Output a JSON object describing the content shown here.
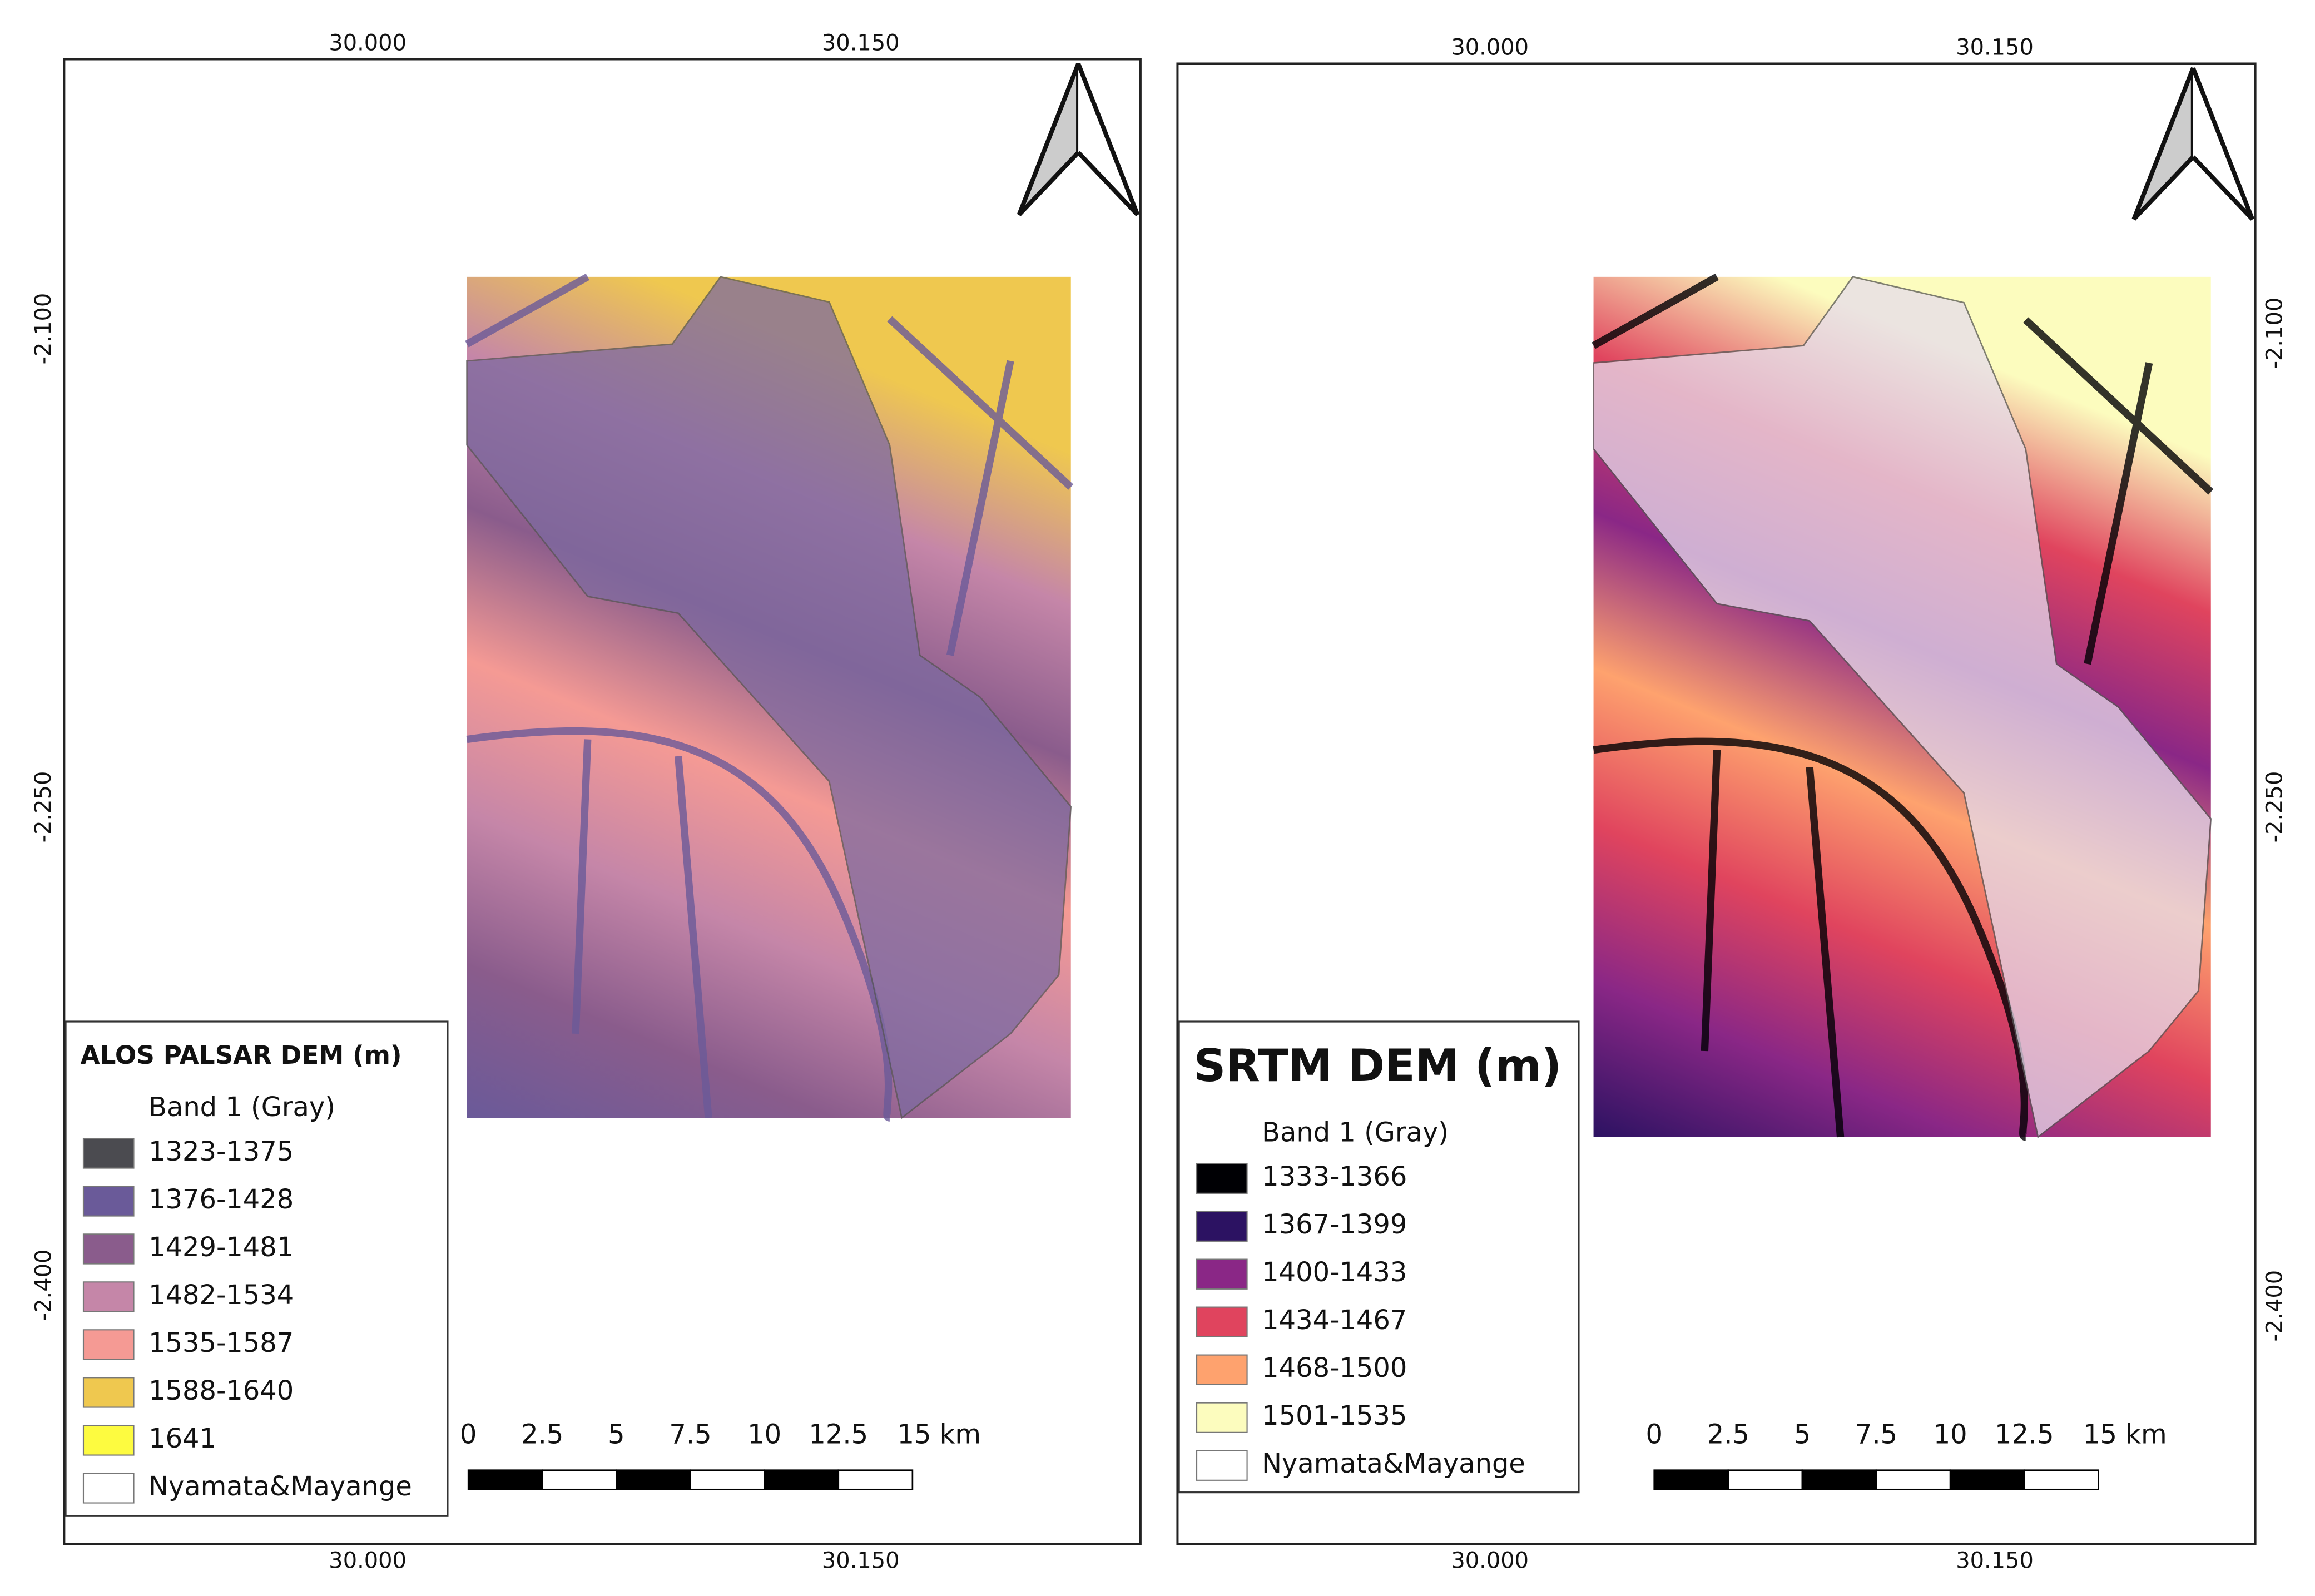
{
  "maps": [
    {
      "title": "ALOS PALSAR DEM (m)",
      "band": "Band 1 (Gray)",
      "classes": [
        {
          "label": "1323-1375",
          "color": "#4b4b50"
        },
        {
          "label": "1376-1428",
          "color": "#6a5a99"
        },
        {
          "label": "1429-1481",
          "color": "#8a5c8c"
        },
        {
          "label": "1482-1534",
          "color": "#c586a8"
        },
        {
          "label": "1535-1587",
          "color": "#f59a94"
        },
        {
          "label": "1588-1640",
          "color": "#efc84f"
        },
        {
          "label": "1641",
          "color": "#fdfb40"
        }
      ],
      "boundary": "Nyamata&Mayange",
      "x_labels": [
        "30.000",
        "30.150"
      ],
      "y_labels": [
        "-2.100",
        "-2.250",
        "-2.400"
      ],
      "scale_labels": [
        "0",
        "2.5",
        "5",
        "7.5",
        "10",
        "12.5",
        "15 km"
      ]
    },
    {
      "title": "SRTM DEM (m)",
      "band": "Band 1 (Gray)",
      "classes": [
        {
          "label": "1333-1366",
          "color": "#000004"
        },
        {
          "label": "1367-1399",
          "color": "#2c1262"
        },
        {
          "label": "1400-1433",
          "color": "#8a2786"
        },
        {
          "label": "1434-1467",
          "color": "#e0445e"
        },
        {
          "label": "1468-1500",
          "color": "#fea26e"
        },
        {
          "label": "1501-1535",
          "color": "#fcfcbe"
        }
      ],
      "boundary": "Nyamata&Mayange",
      "x_labels": [
        "30.000",
        "30.150"
      ],
      "y_labels": [
        "-2.100",
        "-2.250",
        "-2.400"
      ],
      "scale_labels": [
        "0",
        "2.5",
        "5",
        "7.5",
        "10",
        "12.5",
        "15 km"
      ]
    }
  ]
}
